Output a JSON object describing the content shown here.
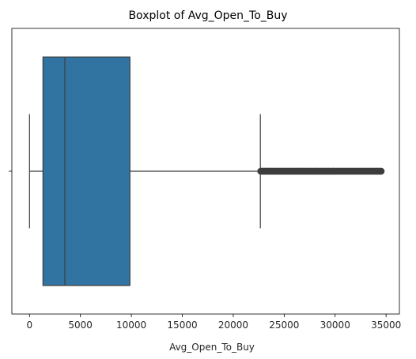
{
  "chart_data": {
    "type": "boxplot",
    "title": "Boxplot of Avg_Open_To_Buy",
    "xlabel": "Avg_Open_To_Buy",
    "ylabel": "",
    "orientation": "horizontal",
    "xlim": [
      -1729,
      36306
    ],
    "x_ticks": [
      0,
      5000,
      10000,
      15000,
      20000,
      25000,
      30000,
      35000
    ],
    "x_tick_labels": [
      "0",
      "5000",
      "10000",
      "15000",
      "20000",
      "25000",
      "30000",
      "35000"
    ],
    "grid": false,
    "legend": "none",
    "box": {
      "whisker_low": 3,
      "q1": 1324,
      "median": 3474,
      "q3": 9859,
      "whisker_high": 22660
    },
    "outliers": {
      "min": 22700,
      "max": 34516,
      "count": 963,
      "samples": [
        22700,
        22900,
        23100,
        23300,
        23500,
        23800,
        24000,
        24300,
        24600,
        24900,
        25200,
        25500,
        25800,
        26100,
        26400,
        26700,
        27000,
        27300,
        27600,
        28000,
        28300,
        28700,
        29000,
        29400,
        29800,
        30200,
        30600,
        31000,
        31400,
        31800,
        32200,
        32600,
        33000,
        33400,
        33800,
        34100,
        34400,
        34516
      ]
    },
    "colors": {
      "box_fill": "#3274a1",
      "line": "#3d3d3d",
      "outlier": "#3d3d3d",
      "axis": "#000000"
    }
  }
}
